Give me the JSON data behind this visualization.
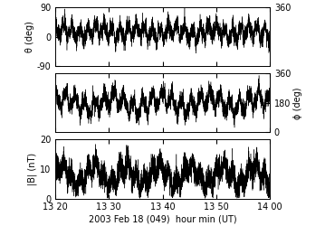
{
  "title": "",
  "xlabel": "2003 Feb 18 (049)  hour min (UT)",
  "panels": [
    {
      "ylabel_left": "θ (deg)",
      "ylim_left": [
        -90,
        90
      ],
      "ylim_right": [
        -90,
        90
      ],
      "yticks_left": [
        -90,
        0,
        90
      ],
      "ytick_labels_left": [
        "-90",
        "0",
        "90"
      ],
      "yticks_right": [],
      "ytick_labels_right": [],
      "right_label_ticks": [
        [
          90,
          "360"
        ]
      ],
      "ylabel_right": "",
      "mean": 15,
      "amp_slow": 8,
      "period_slow": 7,
      "amp_fast": 18,
      "period_fast": 1.5,
      "amp_faster": 10,
      "period_faster": 0.6,
      "noise_scale": 12,
      "seed": 42
    },
    {
      "ylabel_left": "",
      "ylim_left": [
        120,
        240
      ],
      "ylim_right": [
        0,
        360
      ],
      "yticks_left": [],
      "ytick_labels_left": [],
      "yticks_right": [
        0,
        180,
        360
      ],
      "ytick_labels_right": [
        "0",
        "180",
        "360"
      ],
      "right_label_ticks": [],
      "ylabel_right": "ϕ (deg)",
      "mean": 180,
      "amp_slow": 10,
      "period_slow": 9,
      "amp_fast": 15,
      "period_fast": 1.8,
      "amp_faster": 7,
      "period_faster": 0.7,
      "noise_scale": 8,
      "seed": 99
    },
    {
      "ylabel_left": "|B| (nT)",
      "ylim_left": [
        0,
        20
      ],
      "ylim_right": [
        0,
        20
      ],
      "yticks_left": [
        0,
        10,
        20
      ],
      "ytick_labels_left": [
        "0",
        "10",
        "20"
      ],
      "yticks_right": [],
      "ytick_labels_right": [],
      "right_label_ticks": [],
      "ylabel_right": "",
      "mean": 8,
      "amp_slow": 3,
      "period_slow": 6,
      "amp_fast": 2,
      "period_fast": 1.5,
      "amp_faster": 1,
      "period_faster": 0.5,
      "noise_scale": 2,
      "seed": 7
    }
  ],
  "xmin_minutes": 0,
  "xmax_minutes": 40,
  "xtick_positions_minutes": [
    0,
    10,
    20,
    30,
    40
  ],
  "xtick_labels": [
    "13 20",
    "13 30",
    "13 40",
    "13 50",
    "14 00"
  ],
  "n_points": 4800,
  "background_color": "#ffffff",
  "line_color": "#000000",
  "linewidth": 0.3
}
